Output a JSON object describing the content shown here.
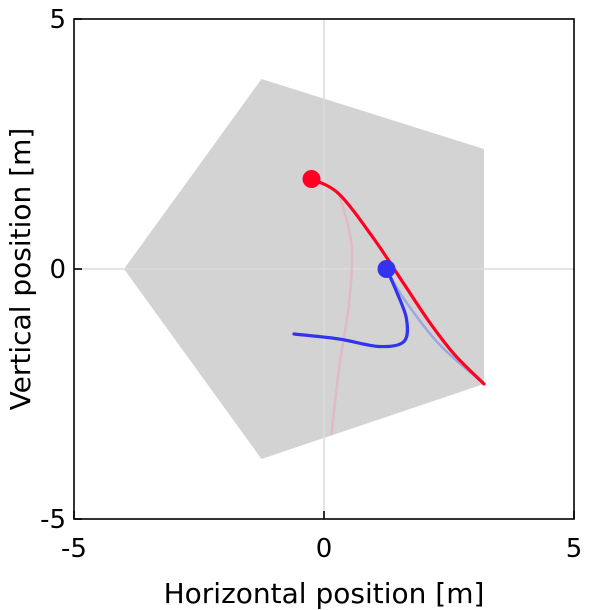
{
  "chart_data": {
    "type": "line",
    "title": "",
    "xlabel": "Horizontal position [m]",
    "ylabel": "Vertical position [m]",
    "xlim": [
      -5,
      5
    ],
    "ylim": [
      -5,
      5
    ],
    "xticks": [
      -5,
      0,
      5
    ],
    "yticks": [
      -5,
      0,
      5
    ],
    "xtick_labels": [
      "-5",
      "0",
      "5"
    ],
    "ytick_labels": [
      "-5",
      "0",
      "5"
    ],
    "grid": "zero lines only",
    "legend": "none",
    "region": {
      "fill": "#d3d3d3",
      "vertices": [
        [
          -1.25,
          3.8
        ],
        [
          3.2,
          2.4
        ],
        [
          3.2,
          -2.3
        ],
        [
          -1.25,
          -3.8
        ],
        [
          -4.0,
          0.0
        ]
      ]
    },
    "series": [
      {
        "color": "#ff0022",
        "points": [
          [
            -0.25,
            1.8
          ],
          [
            0.3,
            1.5
          ],
          [
            1.0,
            0.6
          ],
          [
            1.6,
            -0.3
          ],
          [
            2.1,
            -1.05
          ],
          [
            2.6,
            -1.7
          ],
          [
            3.2,
            -2.3
          ]
        ],
        "marker_at_start": true
      },
      {
        "color": "#3333ee",
        "points": [
          [
            1.25,
            0.0
          ],
          [
            1.45,
            -0.45
          ],
          [
            1.65,
            -1.0
          ],
          [
            1.6,
            -1.45
          ],
          [
            1.1,
            -1.55
          ],
          [
            0.3,
            -1.4
          ],
          [
            -0.6,
            -1.3
          ]
        ],
        "marker_at_start": true
      },
      {
        "color": "#8fa0e0",
        "points": [
          [
            1.25,
            0.0
          ],
          [
            1.6,
            -0.6
          ],
          [
            2.3,
            -1.5
          ],
          [
            3.2,
            -2.3
          ]
        ],
        "marker_at_start": false
      },
      {
        "color": "#e3b5c0",
        "points": [
          [
            0.3,
            1.5
          ],
          [
            0.55,
            0.5
          ],
          [
            0.5,
            -0.7
          ],
          [
            0.3,
            -2.0
          ],
          [
            0.15,
            -3.3
          ]
        ],
        "marker_at_start": false
      }
    ]
  }
}
